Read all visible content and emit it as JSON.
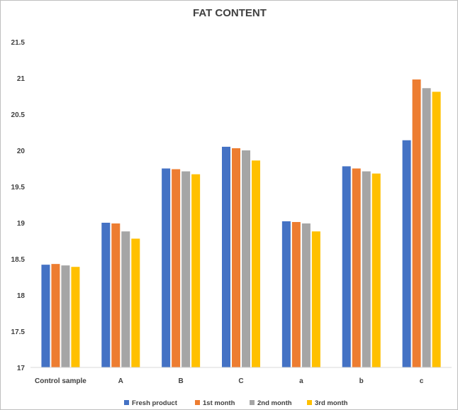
{
  "chart_data": {
    "type": "bar",
    "title": "FAT CONTENT",
    "categories": [
      "Control sample",
      "A",
      "B",
      "C",
      "a",
      "b",
      "c"
    ],
    "series": [
      {
        "name": "Fresh product",
        "color": "#4472c4",
        "values": [
          18.42,
          19.0,
          19.75,
          20.05,
          19.02,
          19.78,
          20.14
        ]
      },
      {
        "name": "1st month",
        "color": "#ed7d31",
        "values": [
          18.43,
          18.99,
          19.74,
          20.03,
          19.01,
          19.75,
          20.98
        ]
      },
      {
        "name": "2nd month",
        "color": "#a5a5a5",
        "values": [
          18.41,
          18.88,
          19.71,
          20.0,
          18.99,
          19.71,
          20.86
        ]
      },
      {
        "name": "3rd month",
        "color": "#ffc000",
        "values": [
          18.39,
          18.78,
          19.67,
          19.86,
          18.88,
          19.68,
          20.81
        ]
      }
    ],
    "ylim": [
      17,
      21.5
    ],
    "yticks": [
      "17",
      "17.5",
      "18",
      "18.5",
      "19",
      "19.5",
      "20",
      "20.5",
      "21",
      "21.5"
    ],
    "grid": false,
    "legend_position": "bottom",
    "xlabel": "",
    "ylabel": ""
  }
}
